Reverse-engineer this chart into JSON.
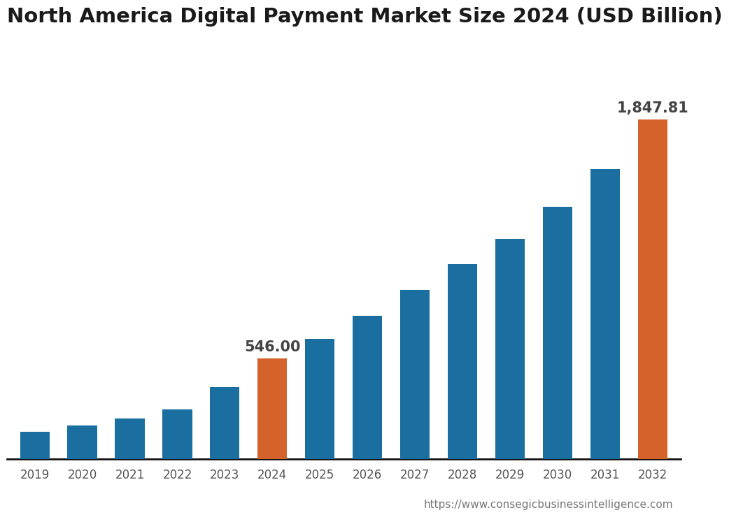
{
  "title": "North America Digital Payment Market Size 2024 (USD Billion)",
  "years": [
    2019,
    2020,
    2021,
    2022,
    2023,
    2024,
    2025,
    2026,
    2027,
    2028,
    2029,
    2030,
    2031,
    2032
  ],
  "values": [
    150.0,
    182.0,
    220.0,
    270.0,
    390.0,
    546.0,
    653.0,
    780.0,
    920.0,
    1060.0,
    1195.0,
    1370.0,
    1575.0,
    1847.81
  ],
  "highlight_years": [
    2024,
    2032
  ],
  "highlight_labels": {
    "2024": "546.00",
    "2032": "1,847.81"
  },
  "bar_color_default": "#1a6ea0",
  "bar_color_highlight": "#d4622a",
  "background_color": "#ffffff",
  "title_fontsize": 21,
  "tick_fontsize": 12,
  "annotation_fontsize": 15,
  "url_text": "https://www.consegicbusinessintelligence.com",
  "url_fontsize": 11,
  "url_color": "#777777"
}
